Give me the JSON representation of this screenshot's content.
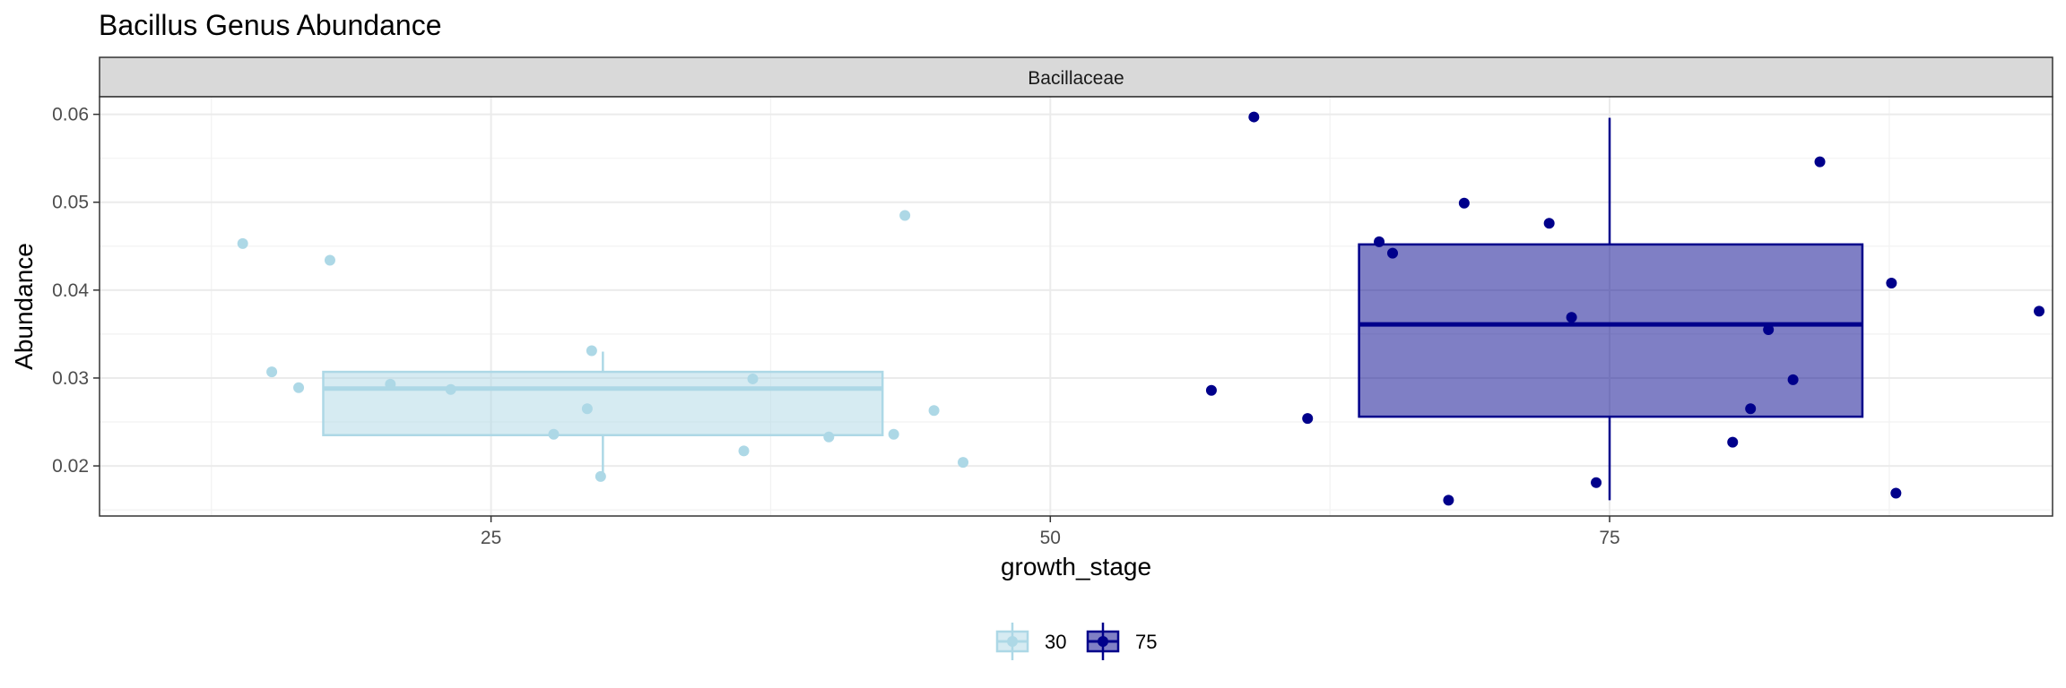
{
  "chart_data": {
    "type": "boxplot",
    "title": "Bacillus Genus Abundance",
    "facet_label": "Bacillaceae",
    "xlabel": "growth_stage",
    "ylabel": "Abundance",
    "xlim": [
      7.5,
      94.8
    ],
    "ylim": [
      0.0143,
      0.062
    ],
    "x_ticks": [
      25,
      50,
      75
    ],
    "x_minor_ticks": [
      12.5,
      37.5,
      62.5,
      87.5
    ],
    "y_ticks": [
      0.02,
      0.03,
      0.04,
      0.05,
      0.06
    ],
    "y_minor_ticks": [
      0.015,
      0.025,
      0.035,
      0.045,
      0.055
    ],
    "grid": true,
    "legend_position": "bottom",
    "series": [
      {
        "name": "30",
        "color": "#add8e6",
        "box": {
          "x": 30,
          "x_min": 17.5,
          "x_max": 42.5,
          "q1": 0.0235,
          "median": 0.0288,
          "q3": 0.0307,
          "whisker_low": 0.0189,
          "whisker_high": 0.033
        },
        "points": [
          {
            "x": 13.9,
            "y": 0.0453
          },
          {
            "x": 15.2,
            "y": 0.0307
          },
          {
            "x": 16.4,
            "y": 0.0289
          },
          {
            "x": 17.8,
            "y": 0.0434
          },
          {
            "x": 20.5,
            "y": 0.0293
          },
          {
            "x": 23.2,
            "y": 0.0287
          },
          {
            "x": 27.8,
            "y": 0.0236
          },
          {
            "x": 29.3,
            "y": 0.0265
          },
          {
            "x": 29.5,
            "y": 0.0331
          },
          {
            "x": 29.9,
            "y": 0.0188
          },
          {
            "x": 36.3,
            "y": 0.0217
          },
          {
            "x": 36.7,
            "y": 0.0299
          },
          {
            "x": 40.1,
            "y": 0.0233
          },
          {
            "x": 43.0,
            "y": 0.0236
          },
          {
            "x": 43.5,
            "y": 0.0485
          },
          {
            "x": 44.8,
            "y": 0.0263
          },
          {
            "x": 46.1,
            "y": 0.0204
          }
        ]
      },
      {
        "name": "75",
        "color": "#00008b",
        "box": {
          "x": 75,
          "x_min": 63.8,
          "x_max": 86.3,
          "q1": 0.0256,
          "median": 0.0361,
          "q3": 0.0452,
          "whisker_low": 0.0161,
          "whisker_high": 0.0596
        },
        "points": [
          {
            "x": 57.2,
            "y": 0.0286
          },
          {
            "x": 59.1,
            "y": 0.0597
          },
          {
            "x": 61.5,
            "y": 0.0254
          },
          {
            "x": 64.7,
            "y": 0.0455
          },
          {
            "x": 65.3,
            "y": 0.0442
          },
          {
            "x": 67.8,
            "y": 0.0161
          },
          {
            "x": 68.5,
            "y": 0.0499
          },
          {
            "x": 72.3,
            "y": 0.0476
          },
          {
            "x": 73.3,
            "y": 0.0369
          },
          {
            "x": 74.4,
            "y": 0.0181
          },
          {
            "x": 80.5,
            "y": 0.0227
          },
          {
            "x": 81.3,
            "y": 0.0265
          },
          {
            "x": 82.1,
            "y": 0.0355
          },
          {
            "x": 83.2,
            "y": 0.0298
          },
          {
            "x": 84.4,
            "y": 0.0546
          },
          {
            "x": 87.6,
            "y": 0.0408
          },
          {
            "x": 87.8,
            "y": 0.0169
          },
          {
            "x": 94.2,
            "y": 0.0376
          }
        ]
      }
    ]
  }
}
